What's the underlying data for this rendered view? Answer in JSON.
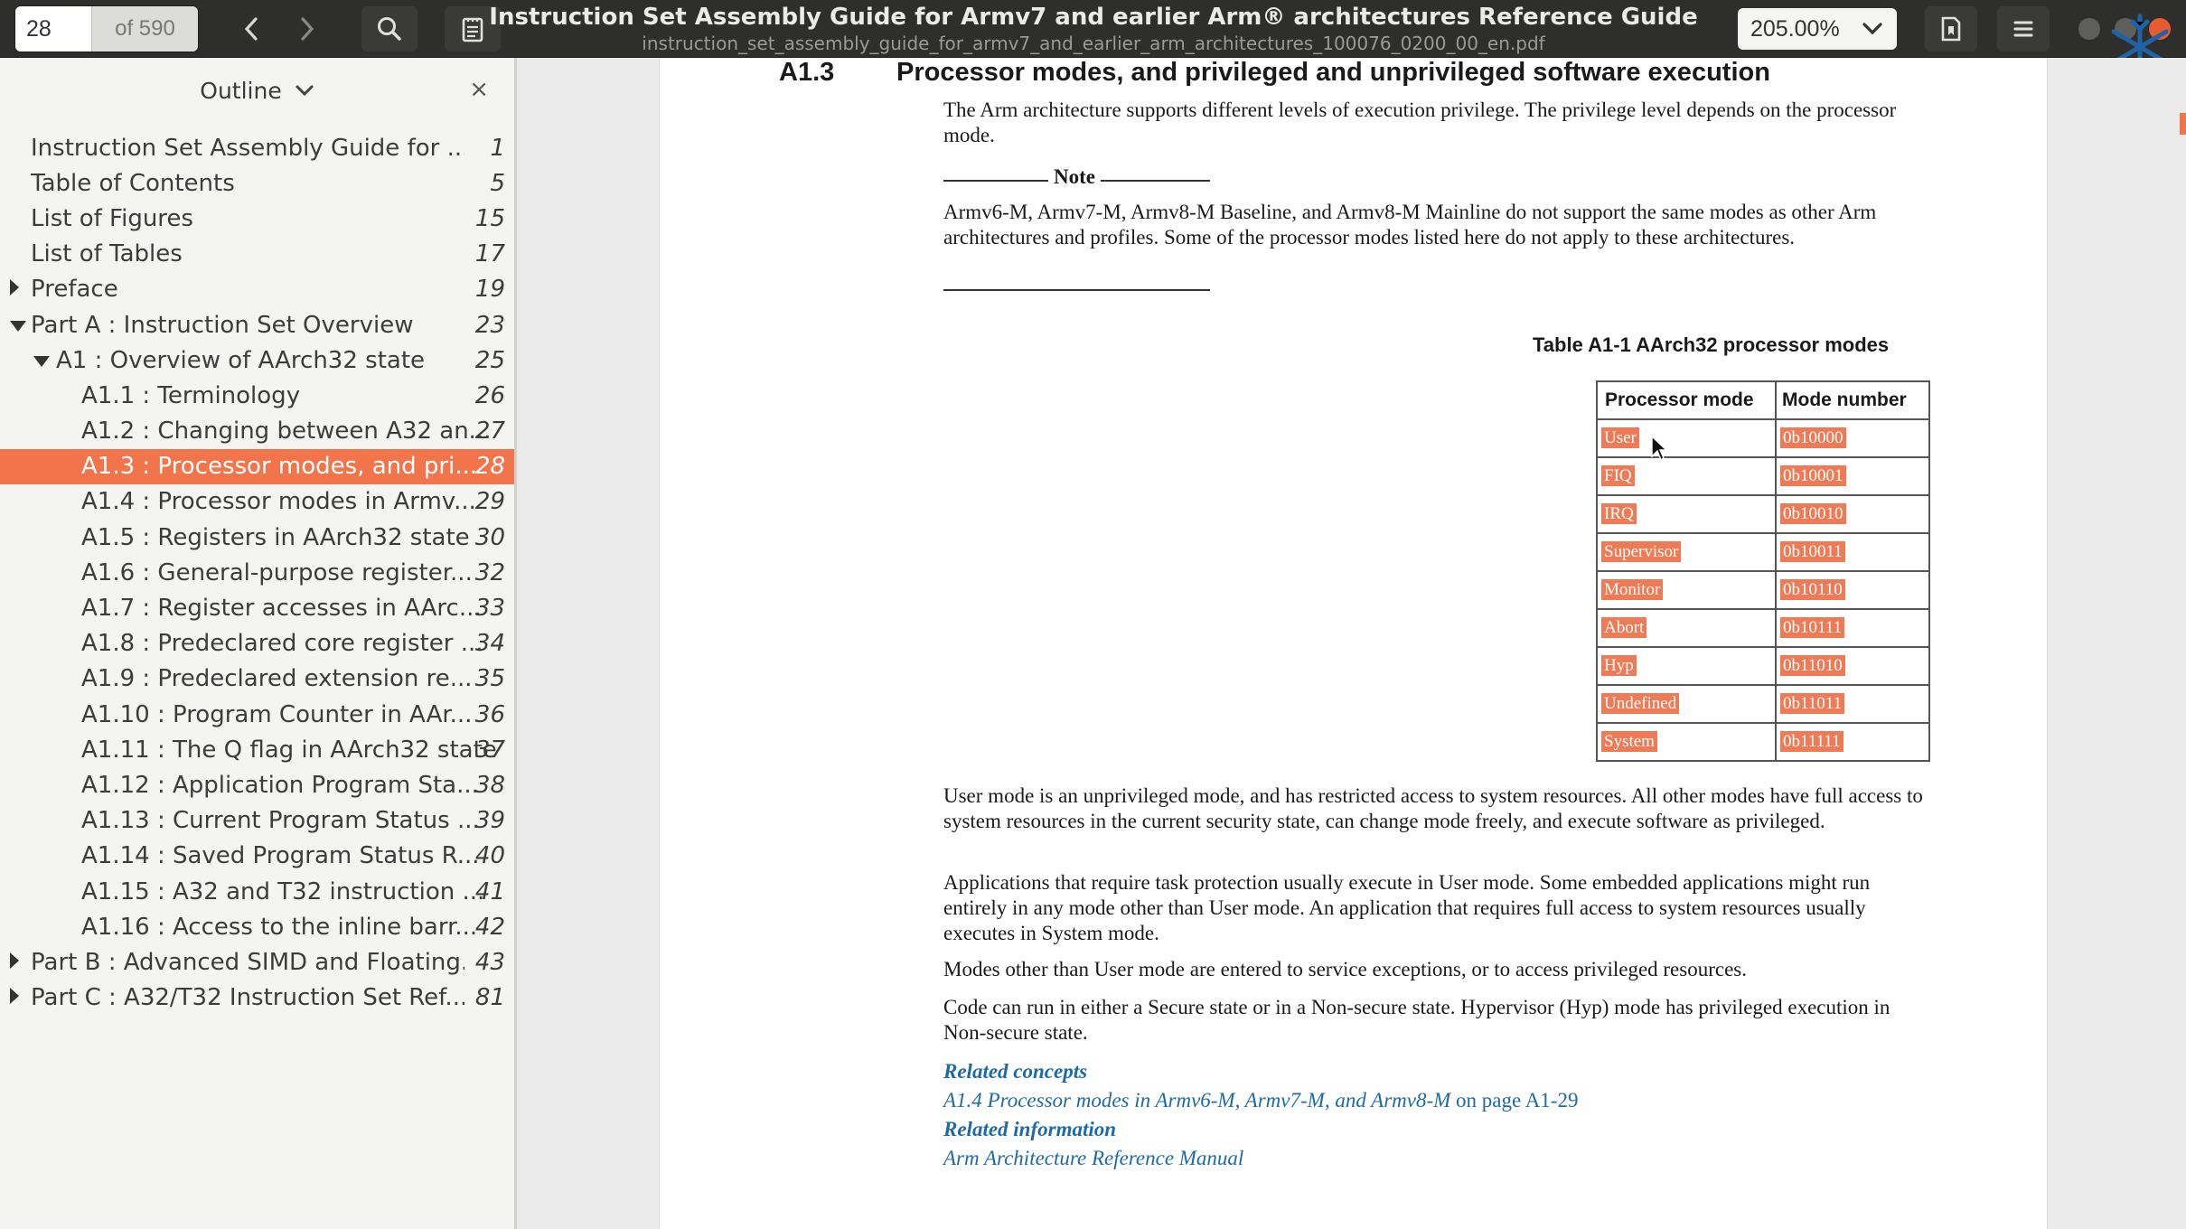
{
  "header": {
    "current_page": "28",
    "page_total": "of 590",
    "title": "Instruction Set Assembly Guide for Armv7 and earlier Arm® architectures Reference Guide",
    "filename": "instruction_set_assembly_guide_for_armv7_and_earlier_arm_architectures_100076_0200_00_en.pdf",
    "zoom": "205.00%",
    "icons": [
      "chevron-left-icon",
      "chevron-right-icon",
      "search-icon",
      "annotations-icon",
      "bookmark-icon",
      "hamburger-menu-icon"
    ]
  },
  "sidebar": {
    "mode_label": "Outline",
    "close_glyph": "×",
    "items": [
      {
        "label": "Instruction Set Assembly Guide for ...",
        "page": "1",
        "level": 0,
        "expander": "",
        "selected": false
      },
      {
        "label": "Table of Contents",
        "page": "5",
        "level": 0,
        "expander": "",
        "selected": false
      },
      {
        "label": "List of Figures",
        "page": "15",
        "level": 0,
        "expander": "",
        "selected": false
      },
      {
        "label": "List of Tables",
        "page": "17",
        "level": 0,
        "expander": "",
        "selected": false
      },
      {
        "label": "Preface",
        "page": "19",
        "level": 0,
        "expander": "collapsed",
        "selected": false
      },
      {
        "label": "Part A :  Instruction Set Overview",
        "page": "23",
        "level": 0,
        "expander": "expanded",
        "selected": false
      },
      {
        "label": "A1 : Overview of AArch32 state",
        "page": "25",
        "level": 1,
        "expander": "expanded",
        "selected": false
      },
      {
        "label": "A1.1 : Terminology",
        "page": "26",
        "level": 2,
        "expander": "",
        "selected": false
      },
      {
        "label": "A1.2 : Changing between A32 an...",
        "page": "27",
        "level": 2,
        "expander": "",
        "selected": false
      },
      {
        "label": "A1.3 : Processor modes, and pri...",
        "page": "28",
        "level": 2,
        "expander": "",
        "selected": true
      },
      {
        "label": "A1.4 : Processor modes in Armv...",
        "page": "29",
        "level": 2,
        "expander": "",
        "selected": false
      },
      {
        "label": "A1.5 : Registers in AArch32 state",
        "page": "30",
        "level": 2,
        "expander": "",
        "selected": false
      },
      {
        "label": "A1.6 : General-purpose register...",
        "page": "32",
        "level": 2,
        "expander": "",
        "selected": false
      },
      {
        "label": "A1.7 : Register accesses in AArc...",
        "page": "33",
        "level": 2,
        "expander": "",
        "selected": false
      },
      {
        "label": "A1.8 : Predeclared core register ...",
        "page": "34",
        "level": 2,
        "expander": "",
        "selected": false
      },
      {
        "label": "A1.9 : Predeclared extension re...",
        "page": "35",
        "level": 2,
        "expander": "",
        "selected": false
      },
      {
        "label": "A1.10 : Program Counter in AAr...",
        "page": "36",
        "level": 2,
        "expander": "",
        "selected": false
      },
      {
        "label": "A1.11 : The Q flag in AArch32 state",
        "page": "37",
        "level": 2,
        "expander": "",
        "selected": false
      },
      {
        "label": "A1.12 : Application Program Sta...",
        "page": "38",
        "level": 2,
        "expander": "",
        "selected": false
      },
      {
        "label": "A1.13 : Current Program Status ...",
        "page": "39",
        "level": 2,
        "expander": "",
        "selected": false
      },
      {
        "label": "A1.14 : Saved Program Status R...",
        "page": "40",
        "level": 2,
        "expander": "",
        "selected": false
      },
      {
        "label": "A1.15 : A32 and T32 instruction ...",
        "page": "41",
        "level": 2,
        "expander": "",
        "selected": false
      },
      {
        "label": "A1.16 : Access to the inline barr...",
        "page": "42",
        "level": 2,
        "expander": "",
        "selected": false
      },
      {
        "label": "Part B :  Advanced SIMD and Floating...",
        "page": "43",
        "level": 0,
        "expander": "collapsed",
        "selected": false
      },
      {
        "label": "Part C :  A32/T32 Instruction Set Ref...",
        "page": "81",
        "level": 0,
        "expander": "collapsed",
        "selected": false
      }
    ]
  },
  "document": {
    "section_number": "A1.3",
    "section_title": "Processor modes, and privileged and unprivileged software execution",
    "intro": "The Arm architecture supports different levels of execution privilege. The privilege level depends on the processor mode.",
    "note_label": "Note",
    "note_text": "Armv6-M, Armv7-M, Armv8-M Baseline, and Armv8-M Mainline do not support the same modes as other Arm architectures and profiles. Some of the processor modes listed here do not apply to these architectures.",
    "table_caption": "Table A1-1  AArch32 processor modes",
    "table_headers": [
      "Processor mode",
      "Mode number"
    ],
    "table_rows": [
      [
        "User",
        "0b10000"
      ],
      [
        "FIQ",
        "0b10001"
      ],
      [
        "IRQ",
        "0b10010"
      ],
      [
        "Supervisor",
        "0b10011"
      ],
      [
        "Monitor",
        "0b10110"
      ],
      [
        "Abort",
        "0b10111"
      ],
      [
        "Hyp",
        "0b11010"
      ],
      [
        "Undefined",
        "0b11011"
      ],
      [
        "System",
        "0b11111"
      ]
    ],
    "para1": "User mode is an unprivileged mode, and has restricted access to system resources. All other modes have full access to system resources in the current security state, can change mode freely, and execute software as privileged.",
    "para2": "Applications that require task protection usually execute in User mode. Some embedded applications might run entirely in any mode other than User mode. An application that requires full access to system resources usually executes in System mode.",
    "para3": "Modes other than User mode are entered to service exceptions, or to access privileged resources.",
    "para4": "Code can run in either a Secure state or in a Non-secure state. Hypervisor (Hyp) mode has privileged execution in Non-secure state.",
    "related_concepts_label": "Related concepts",
    "related_concepts_link": "A1.4 Processor modes in Armv6-M, Armv7-M, and Armv8-M",
    "related_concepts_page": " on page A1-29",
    "related_info_label": "Related information",
    "related_info_link": "Arm Architecture Reference Manual"
  },
  "colors": {
    "accent": "#f2744a",
    "highlight": "#ee7b56",
    "link": "#1d6aa6",
    "header_bg": "#2e2e2c"
  }
}
